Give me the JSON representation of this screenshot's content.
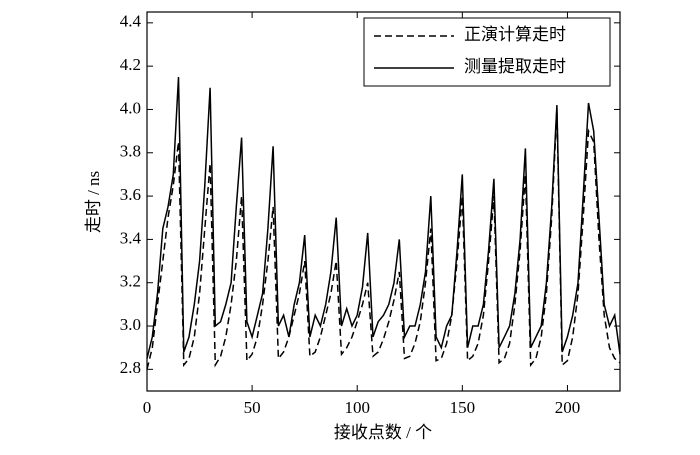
{
  "chart_data": {
    "type": "line",
    "xlabel": "接收点数 / 个",
    "ylabel": "走时 / ns",
    "x": [
      0,
      2.5,
      5,
      7.5,
      10,
      12.5,
      15,
      17.5,
      20,
      22.5,
      25,
      27.5,
      30,
      32.5,
      35,
      37.5,
      40,
      42.5,
      45,
      47.5,
      50,
      52.5,
      55,
      57.5,
      60,
      62.5,
      65,
      67.5,
      70,
      72.5,
      75,
      77.5,
      80,
      82.5,
      85,
      87.5,
      90,
      92.5,
      95,
      97.5,
      100,
      102.5,
      105,
      107.5,
      110,
      112.5,
      115,
      117.5,
      120,
      122.5,
      125,
      127.5,
      130,
      132.5,
      135,
      137.5,
      140,
      142.5,
      145,
      147.5,
      150,
      152.5,
      155,
      157.5,
      160,
      162.5,
      165,
      167.5,
      170,
      172.5,
      175,
      177.5,
      180,
      182.5,
      185,
      187.5,
      190,
      192.5,
      195,
      197.5,
      200,
      202.5,
      205,
      207.5,
      210,
      212.5,
      215,
      217.5,
      220,
      222.5,
      225
    ],
    "series": [
      {
        "name": "正演计算走时",
        "color": "#000000",
        "dash": true,
        "values": [
          2.8,
          2.9,
          3.1,
          3.3,
          3.5,
          3.65,
          3.85,
          2.82,
          2.85,
          2.95,
          3.15,
          3.45,
          3.75,
          2.82,
          2.86,
          2.95,
          3.1,
          3.3,
          3.6,
          2.84,
          2.87,
          2.95,
          3.1,
          3.3,
          3.55,
          2.85,
          2.88,
          2.95,
          3.05,
          3.15,
          3.3,
          2.86,
          2.88,
          2.95,
          3.05,
          3.15,
          3.3,
          2.87,
          2.9,
          2.95,
          3.02,
          3.1,
          3.2,
          2.86,
          2.88,
          2.94,
          3.02,
          3.12,
          3.25,
          2.85,
          2.86,
          2.92,
          3.02,
          3.2,
          3.45,
          2.84,
          2.85,
          2.92,
          3.05,
          3.3,
          3.6,
          2.84,
          2.86,
          2.92,
          3.05,
          3.3,
          3.6,
          2.83,
          2.85,
          2.92,
          3.1,
          3.35,
          3.7,
          2.82,
          2.85,
          2.95,
          3.15,
          3.5,
          4.0,
          2.82,
          2.84,
          2.95,
          3.15,
          3.5,
          3.9,
          3.85,
          3.4,
          3.05,
          2.9,
          2.85,
          2.83
        ]
      },
      {
        "name": "测量提取走时",
        "color": "#000000",
        "dash": false,
        "values": [
          2.85,
          2.95,
          3.15,
          3.45,
          3.55,
          3.7,
          4.15,
          2.88,
          2.95,
          3.1,
          3.3,
          3.65,
          4.1,
          3.0,
          3.02,
          3.1,
          3.2,
          3.55,
          3.87,
          3.02,
          2.95,
          3.05,
          3.15,
          3.45,
          3.83,
          3.0,
          3.05,
          2.95,
          3.1,
          3.2,
          3.42,
          2.95,
          3.05,
          3.0,
          3.1,
          3.25,
          3.5,
          3.0,
          3.08,
          3.0,
          3.05,
          3.18,
          3.43,
          2.95,
          3.02,
          3.05,
          3.1,
          3.2,
          3.4,
          2.95,
          3.0,
          3.0,
          3.1,
          3.25,
          3.6,
          2.95,
          2.9,
          3.0,
          3.05,
          3.35,
          3.7,
          2.9,
          3.0,
          3.0,
          3.1,
          3.35,
          3.68,
          2.9,
          2.95,
          3.0,
          3.15,
          3.4,
          3.82,
          2.9,
          2.95,
          3.0,
          3.2,
          3.55,
          4.02,
          2.88,
          2.95,
          3.05,
          3.2,
          3.6,
          4.03,
          3.9,
          3.5,
          3.1,
          3.0,
          3.05,
          2.87
        ]
      }
    ],
    "xlim": [
      0,
      225
    ],
    "xticks": [
      0,
      50,
      100,
      150,
      200
    ],
    "ylim": [
      2.7,
      4.45
    ],
    "yticks": [
      2.8,
      {
        "value": 3,
        "label": "3.0"
      },
      3.2,
      3.4,
      3.6,
      3.8,
      {
        "value": 4,
        "label": "4.0"
      },
      4.2,
      4.4
    ],
    "legend": "upper right",
    "grid": false
  }
}
